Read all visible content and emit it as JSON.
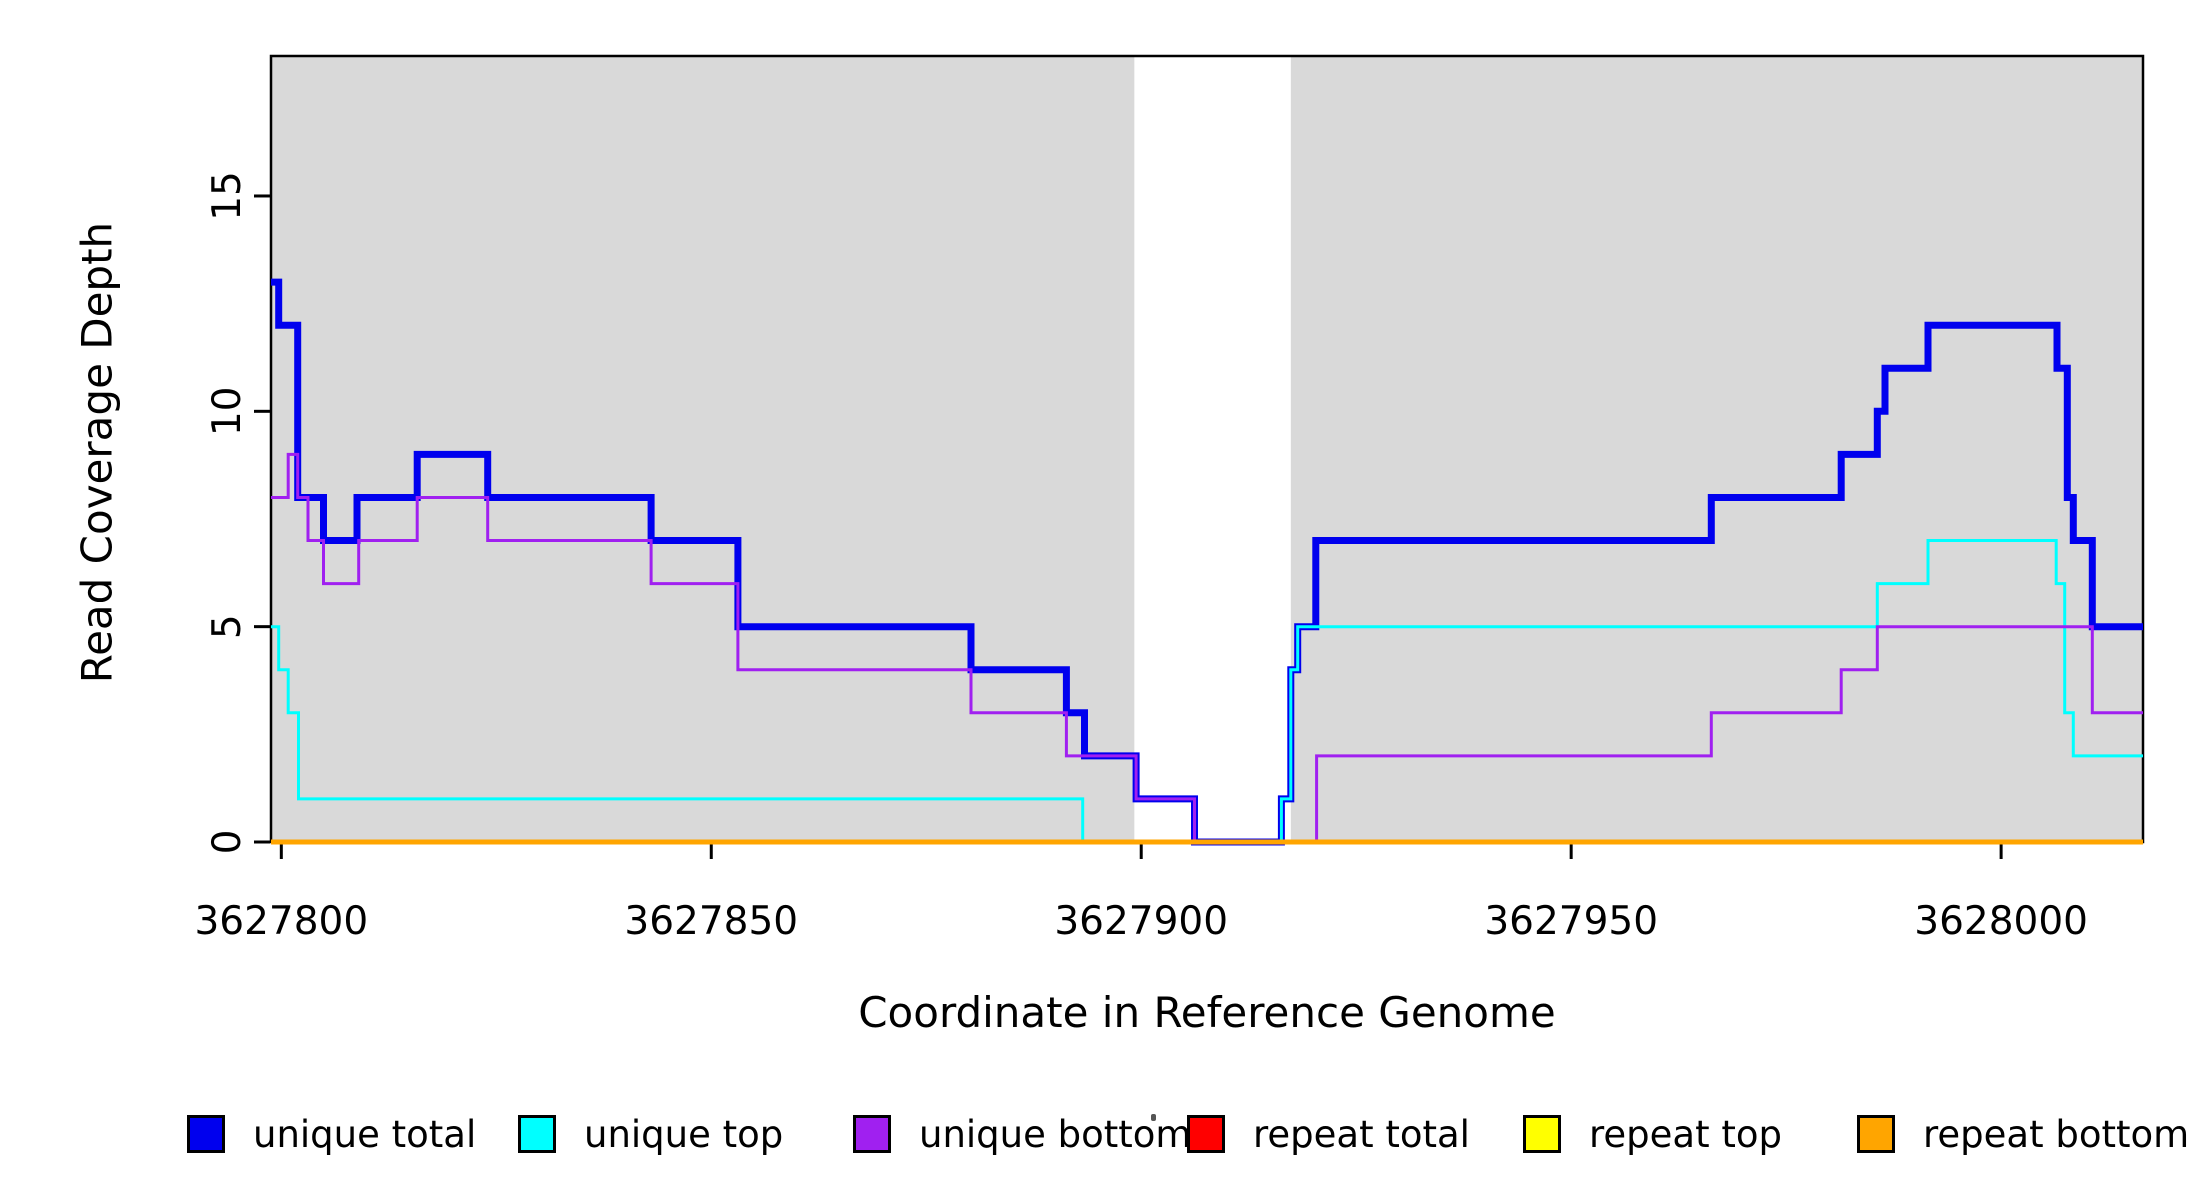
{
  "axes": {
    "x": {
      "label": "Coordinate in Reference Genome",
      "tick_labels": [
        "3627800",
        "3627850",
        "3627900",
        "3627950",
        "3628000"
      ]
    },
    "y": {
      "label": "Read Coverage Depth",
      "tick_labels": [
        "0",
        "5",
        "10",
        "15"
      ]
    }
  },
  "legend": {
    "items": [
      {
        "label": "unique total",
        "color": "#0000EE"
      },
      {
        "label": "unique top",
        "color": "#00FFFF"
      },
      {
        "label": "unique bottom",
        "color": "#A020F0"
      },
      {
        "label": "repeat total",
        "color": "#FF0000"
      },
      {
        "label": "repeat top",
        "color": "#FFFF00"
      },
      {
        "label": "repeat bottom",
        "color": "#FFA500"
      }
    ]
  },
  "chart_data": {
    "type": "line",
    "subtype": "step",
    "title": "",
    "xlabel": "Coordinate in Reference Genome",
    "ylabel": "Read Coverage Depth",
    "xlim": [
      3627798.8,
      3628016.5
    ],
    "ylim": [
      0,
      18.25
    ],
    "x_ticks": [
      3627800,
      3627850,
      3627900,
      3627950,
      3628000
    ],
    "y_ticks": [
      0,
      5,
      10,
      15
    ],
    "grid": false,
    "legend_position": "bottom",
    "background_bands": {
      "color": "#D9D9D9",
      "regions": [
        {
          "from": 3627798.8,
          "to": 3627899.2
        },
        {
          "from": 3627917.4,
          "to": 3628016.5
        }
      ]
    },
    "series": [
      {
        "name": "unique total",
        "color": "#0000EE",
        "line_width": 7,
        "steps": [
          [
            3627798.8,
            13
          ],
          [
            3627799.7,
            12
          ],
          [
            3627801.9,
            8
          ],
          [
            3627804.9,
            7
          ],
          [
            3627808.8,
            8
          ],
          [
            3627815.8,
            9
          ],
          [
            3627824.0,
            8
          ],
          [
            3627843.0,
            7
          ],
          [
            3627853.1,
            5
          ],
          [
            3627880.2,
            4
          ],
          [
            3627891.3,
            3
          ],
          [
            3627893.4,
            2
          ],
          [
            3627899.4,
            1
          ],
          [
            3627906.2,
            0
          ],
          [
            3627916.3,
            1
          ],
          [
            3627917.4,
            4
          ],
          [
            3627918.2,
            5
          ],
          [
            3627920.3,
            7
          ],
          [
            3627966.3,
            8
          ],
          [
            3627981.4,
            9
          ],
          [
            3627985.6,
            10
          ],
          [
            3627986.5,
            11
          ],
          [
            3627991.5,
            12
          ],
          [
            3628006.5,
            11
          ],
          [
            3628007.7,
            8
          ],
          [
            3628008.4,
            7
          ],
          [
            3628010.6,
            5
          ]
        ]
      },
      {
        "name": "unique top",
        "color": "#00FFFF",
        "line_width": 3,
        "steps": [
          [
            3627798.8,
            5
          ],
          [
            3627799.7,
            4
          ],
          [
            3627800.8,
            3
          ],
          [
            3627802.0,
            1
          ],
          [
            3627893.2,
            0
          ],
          [
            3627916.3,
            1
          ],
          [
            3627917.4,
            4
          ],
          [
            3627918.2,
            5
          ],
          [
            3627985.6,
            6
          ],
          [
            3627991.5,
            7
          ],
          [
            3628006.4,
            6
          ],
          [
            3628007.4,
            3
          ],
          [
            3628008.4,
            2
          ]
        ]
      },
      {
        "name": "unique bottom",
        "color": "#A020F0",
        "line_width": 3,
        "steps": [
          [
            3627798.8,
            8
          ],
          [
            3627800.8,
            9
          ],
          [
            3627801.9,
            8
          ],
          [
            3627803.1,
            7
          ],
          [
            3627804.9,
            6
          ],
          [
            3627809.0,
            7
          ],
          [
            3627815.8,
            8
          ],
          [
            3627824.0,
            7
          ],
          [
            3627843.0,
            6
          ],
          [
            3627853.1,
            4
          ],
          [
            3627880.2,
            3
          ],
          [
            3627891.3,
            2
          ],
          [
            3627899.4,
            1
          ],
          [
            3627906.2,
            0
          ],
          [
            3627920.4,
            2
          ],
          [
            3627966.3,
            3
          ],
          [
            3627981.4,
            4
          ],
          [
            3627985.6,
            5
          ],
          [
            3628010.6,
            3
          ]
        ]
      },
      {
        "name": "repeat total",
        "color": "#FF0000",
        "line_width": 3,
        "steps": [
          [
            3627798.8,
            0
          ]
        ]
      },
      {
        "name": "repeat top",
        "color": "#FFFF00",
        "line_width": 3,
        "steps": [
          [
            3627798.8,
            0
          ]
        ]
      },
      {
        "name": "repeat bottom",
        "color": "#FFA500",
        "line_width": 5,
        "steps": [
          [
            3627798.8,
            0
          ]
        ]
      }
    ]
  }
}
